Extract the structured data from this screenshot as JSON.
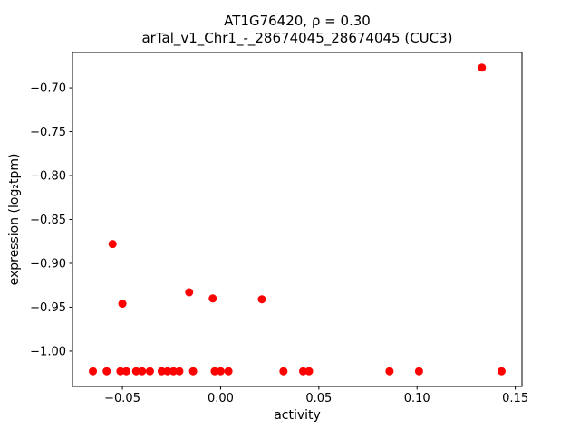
{
  "title": {
    "line1": "AT1G76420, ρ = 0.30",
    "line2": "arTal_v1_Chr1_-_28674045_28674045 (CUC3)"
  },
  "chart_data": {
    "type": "scatter",
    "title": "AT1G76420, ρ = 0.30\narTal_v1_Chr1_-_28674045_28674045 (CUC3)",
    "xlabel": "activity",
    "ylabel": "expression (log₂tpm)",
    "xlim": [
      -0.0754,
      0.1534
    ],
    "ylim": [
      -1.0403,
      -0.6597
    ],
    "grid": false,
    "legend": "none",
    "marker_color": "#ff0000",
    "xticks": [
      {
        "v": -0.05,
        "label": "−0.05"
      },
      {
        "v": 0.0,
        "label": "0.00"
      },
      {
        "v": 0.05,
        "label": "0.05"
      },
      {
        "v": 0.1,
        "label": "0.10"
      },
      {
        "v": 0.15,
        "label": "0.15"
      }
    ],
    "yticks": [
      {
        "v": -0.7,
        "label": "−0.70"
      },
      {
        "v": -0.75,
        "label": "−0.75"
      },
      {
        "v": -0.8,
        "label": "−0.80"
      },
      {
        "v": -0.85,
        "label": "−0.85"
      },
      {
        "v": -0.9,
        "label": "−0.90"
      },
      {
        "v": -0.95,
        "label": "−0.95"
      },
      {
        "v": -1.0,
        "label": "−1.00"
      }
    ],
    "points": [
      [
        -0.065,
        -1.023
      ],
      [
        -0.058,
        -1.023
      ],
      [
        -0.055,
        -0.878
      ],
      [
        -0.051,
        -1.023
      ],
      [
        -0.05,
        -0.946
      ],
      [
        -0.048,
        -1.023
      ],
      [
        -0.043,
        -1.023
      ],
      [
        -0.04,
        -1.023
      ],
      [
        -0.036,
        -1.023
      ],
      [
        -0.03,
        -1.023
      ],
      [
        -0.027,
        -1.023
      ],
      [
        -0.024,
        -1.023
      ],
      [
        -0.021,
        -1.023
      ],
      [
        -0.016,
        -0.933
      ],
      [
        -0.014,
        -1.023
      ],
      [
        -0.004,
        -0.94
      ],
      [
        -0.003,
        -1.023
      ],
      [
        0.0,
        -1.023
      ],
      [
        0.004,
        -1.023
      ],
      [
        0.021,
        -0.941
      ],
      [
        0.032,
        -1.023
      ],
      [
        0.042,
        -1.023
      ],
      [
        0.045,
        -1.023
      ],
      [
        0.086,
        -1.023
      ],
      [
        0.101,
        -1.023
      ],
      [
        0.133,
        -0.677
      ],
      [
        0.143,
        -1.023
      ]
    ]
  }
}
